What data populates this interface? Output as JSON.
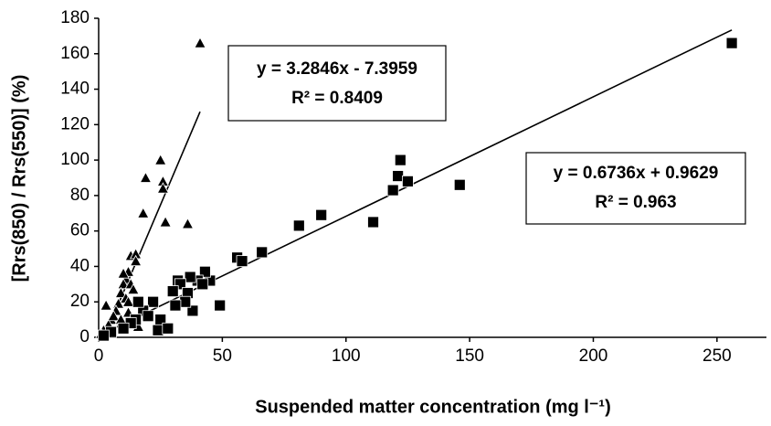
{
  "chart_data": {
    "type": "scatter",
    "x_label": "Suspended matter concentration (mg l⁻¹)",
    "y_label": "[Rrs(850) / Rrs(550)] (%)",
    "xlim": [
      0,
      270
    ],
    "xticks": [
      0,
      50,
      100,
      150,
      200,
      250
    ],
    "ylim": [
      0,
      180
    ],
    "yticks": [
      0,
      20,
      40,
      60,
      80,
      100,
      120,
      140,
      160,
      180
    ],
    "series": [
      {
        "marker": "triangle",
        "color": "#000000",
        "x": [
          41,
          25,
          19,
          26,
          26,
          27,
          18,
          36,
          13,
          15,
          15,
          12,
          11,
          10,
          13,
          14,
          9,
          11,
          8,
          7,
          3,
          5,
          4,
          2,
          1,
          6,
          9,
          12,
          14,
          16,
          12,
          10
        ],
        "values": [
          166,
          100,
          90,
          88,
          84,
          65,
          70,
          64,
          46,
          47,
          43,
          37,
          33,
          30,
          30,
          27,
          25,
          22,
          19,
          15,
          18,
          10,
          7,
          4,
          2,
          12,
          10,
          14,
          8,
          6,
          20,
          36
        ],
        "trendline": {
          "slope": 3.2846,
          "intercept": -7.3959,
          "equation": "y = 3.2846x - 7.3959",
          "r_squared": "R² = 0.8409"
        }
      },
      {
        "marker": "square",
        "color": "#000000",
        "x": [
          256,
          122,
          121,
          125,
          119,
          146,
          90,
          81,
          111,
          66,
          56,
          58,
          45,
          43,
          40,
          37,
          32,
          33,
          30,
          36,
          38,
          49,
          42,
          35,
          31,
          25,
          22,
          18,
          20,
          15,
          13,
          24,
          10,
          5,
          2,
          16,
          28
        ],
        "values": [
          166,
          100,
          91,
          88,
          83,
          86,
          69,
          63,
          65,
          48,
          45,
          43,
          32,
          37,
          32,
          34,
          32,
          30,
          26,
          25,
          15,
          18,
          30,
          20,
          18,
          10,
          20,
          15,
          12,
          10,
          8,
          4,
          5,
          3,
          1,
          20,
          5
        ],
        "trendline": {
          "slope": 0.6736,
          "intercept": 0.9629,
          "equation": "y = 0.6736x + 0.9629",
          "r_squared": "R² = 0.963"
        }
      }
    ]
  }
}
